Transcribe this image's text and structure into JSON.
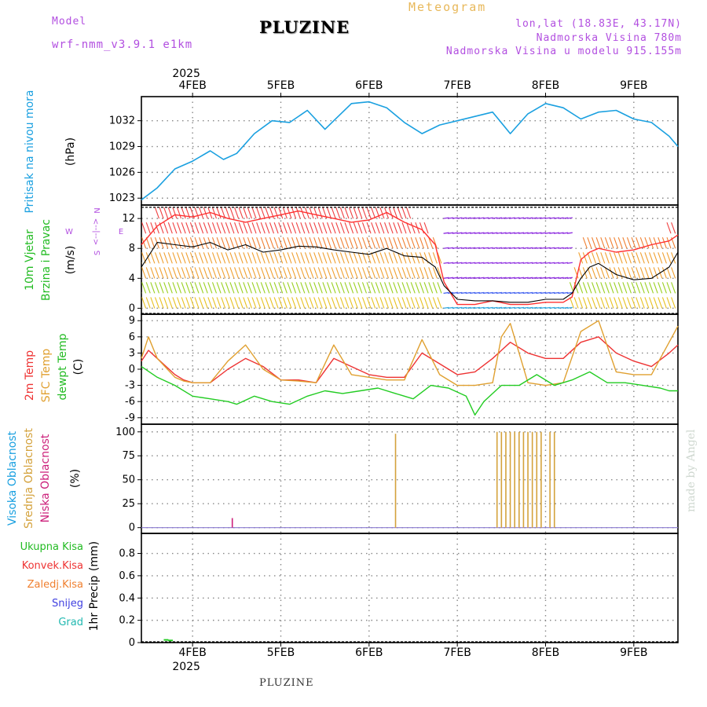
{
  "header": {
    "model_label": "Model",
    "model_name": "wrf-nmm_v3.9.1 e1km",
    "station": "PLUZINE",
    "product": "Meteogram",
    "coords": "lon,lat (18.83E, 43.17N)",
    "elevation": "Nadmorska Visina 780m",
    "model_elevation": "Nadmorska Visina u modelu 915.155m"
  },
  "time_axis": {
    "year": "2025",
    "day_labels": [
      "4FEB",
      "5FEB",
      "6FEB",
      "7FEB",
      "8FEB",
      "9FEB"
    ],
    "day_positions": [
      1,
      2,
      3,
      4,
      5,
      6
    ],
    "range": [
      0.42,
      6.5
    ]
  },
  "footer_label": "PLUZINE",
  "signature": "made by Angel",
  "colors": {
    "pressure": "#1aa0e0",
    "wind_speed": "#000000",
    "gust": "#ff3030",
    "temp2m": "#ee3333",
    "sfc_temp": "#e0a030",
    "dewpoint": "#22cc22",
    "mid_cloud": "#d4a23c",
    "low_cloud": "#cc1f7a",
    "high_cloud": "#2aa8d8",
    "grid": "#888888"
  },
  "chart_data": [
    {
      "type": "line",
      "panel": "pressure",
      "ylabel_main": "Pritisak na nivou mora",
      "unit": "(hPa)",
      "yticks": [
        1023,
        1026,
        1029,
        1032
      ],
      "ylim": [
        1022.2,
        1034.8
      ],
      "series": [
        {
          "x": [
            0.42,
            0.6,
            0.8,
            1.0,
            1.2,
            1.35,
            1.5,
            1.7,
            1.9,
            2.1,
            2.3,
            2.5,
            2.65,
            2.8,
            3.0,
            3.2,
            3.4,
            3.6,
            3.8,
            4.0,
            4.2,
            4.4,
            4.6,
            4.8,
            5.0,
            5.2,
            5.4,
            5.6,
            5.8,
            6.0,
            6.2,
            6.4,
            6.5
          ],
          "values": [
            1022.8,
            1024.2,
            1026.4,
            1027.3,
            1028.5,
            1027.5,
            1028.2,
            1030.5,
            1032.0,
            1031.8,
            1033.2,
            1031.0,
            1032.5,
            1034.0,
            1034.2,
            1033.5,
            1031.8,
            1030.5,
            1031.5,
            1032.0,
            1032.5,
            1033.0,
            1030.5,
            1032.8,
            1034.0,
            1033.5,
            1032.2,
            1033.0,
            1033.2,
            1032.2,
            1031.8,
            1030.2,
            1029.0
          ]
        }
      ]
    },
    {
      "type": "line",
      "panel": "wind",
      "ylabel_main": "10m Vjetar",
      "ylabel_sub": "Brzina i Pravac",
      "unit": "(m/s)",
      "compass": {
        "north": "N",
        "east": "E",
        "south": "S",
        "west": "W",
        "arrows": "<--|-->"
      },
      "yticks": [
        0,
        4,
        8,
        12
      ],
      "ylim": [
        -0.8,
        13.8
      ],
      "series": [
        {
          "name": "speed",
          "x": [
            0.42,
            0.6,
            0.8,
            1.0,
            1.2,
            1.4,
            1.6,
            1.8,
            2.0,
            2.2,
            2.4,
            2.6,
            2.8,
            3.0,
            3.2,
            3.4,
            3.6,
            3.75,
            3.85,
            4.0,
            4.2,
            4.4,
            4.6,
            4.8,
            5.0,
            5.2,
            5.3,
            5.4,
            5.5,
            5.6,
            5.8,
            6.0,
            6.2,
            6.4,
            6.5
          ],
          "values": [
            5.5,
            8.8,
            8.5,
            8.2,
            8.8,
            7.8,
            8.5,
            7.5,
            7.8,
            8.3,
            8.2,
            7.8,
            7.5,
            7.2,
            8.0,
            7.0,
            6.8,
            5.5,
            3.0,
            1.2,
            1.0,
            1.0,
            0.8,
            0.8,
            1.2,
            1.2,
            2.0,
            4.0,
            5.5,
            6.0,
            4.5,
            3.8,
            4.0,
            5.5,
            7.5
          ]
        },
        {
          "name": "gust",
          "x": [
            0.42,
            0.6,
            0.8,
            1.0,
            1.2,
            1.4,
            1.6,
            1.8,
            2.0,
            2.2,
            2.4,
            2.6,
            2.8,
            3.0,
            3.2,
            3.4,
            3.6,
            3.75,
            3.85,
            4.0,
            4.2,
            4.4,
            4.6,
            4.8,
            5.0,
            5.2,
            5.3,
            5.4,
            5.5,
            5.6,
            5.8,
            6.0,
            6.2,
            6.4,
            6.5
          ],
          "values": [
            8.5,
            11.0,
            12.5,
            12.2,
            12.8,
            12.0,
            11.5,
            12.0,
            12.5,
            13.0,
            12.5,
            12.0,
            11.5,
            11.8,
            12.8,
            11.5,
            10.5,
            8.5,
            3.5,
            0.5,
            0.5,
            1.0,
            0.5,
            0.5,
            0.8,
            0.8,
            1.5,
            6.5,
            7.5,
            8.0,
            7.5,
            7.8,
            8.5,
            9.0,
            9.8
          ]
        }
      ]
    },
    {
      "type": "line",
      "panel": "temperature",
      "ylabel_main": "2m Temp",
      "ylabel_sub": "SFC Temp",
      "ylabel_sub2": "dewpt Temp",
      "unit": "(C)",
      "yticks": [
        -9,
        -6,
        -3,
        0,
        3,
        6,
        9
      ],
      "ylim": [
        -10.2,
        10.2
      ],
      "series": [
        {
          "name": "2m Temp",
          "x": [
            0.42,
            0.5,
            0.6,
            0.8,
            0.9,
            1.0,
            1.2,
            1.4,
            1.6,
            1.8,
            2.0,
            2.2,
            2.4,
            2.6,
            2.8,
            3.0,
            3.2,
            3.4,
            3.6,
            3.8,
            4.0,
            4.2,
            4.4,
            4.5,
            4.6,
            4.8,
            5.0,
            5.2,
            5.4,
            5.6,
            5.8,
            6.0,
            6.2,
            6.4,
            6.5
          ],
          "values": [
            1.5,
            3.5,
            2.0,
            -1.0,
            -2.0,
            -2.5,
            -2.5,
            0.0,
            2.0,
            0.5,
            -2.0,
            -2.0,
            -2.5,
            2.0,
            0.5,
            -1.0,
            -1.5,
            -1.5,
            3.0,
            1.0,
            -1.0,
            -0.5,
            2.0,
            3.5,
            5.0,
            3.0,
            2.0,
            2.0,
            5.0,
            6.0,
            3.0,
            1.5,
            0.5,
            3.0,
            4.5
          ]
        },
        {
          "name": "SFC Temp",
          "x": [
            0.42,
            0.5,
            0.6,
            0.8,
            0.9,
            1.0,
            1.2,
            1.4,
            1.6,
            1.8,
            2.0,
            2.2,
            2.4,
            2.6,
            2.8,
            3.0,
            3.2,
            3.4,
            3.6,
            3.8,
            4.0,
            4.2,
            4.4,
            4.5,
            4.6,
            4.8,
            5.0,
            5.2,
            5.4,
            5.6,
            5.8,
            6.0,
            6.2,
            6.4,
            6.5
          ],
          "values": [
            2.0,
            6.0,
            2.0,
            -1.5,
            -2.2,
            -2.5,
            -2.5,
            1.5,
            4.5,
            0.0,
            -2.0,
            -2.2,
            -2.5,
            4.5,
            -1.0,
            -1.5,
            -2.0,
            -2.0,
            5.5,
            -1.0,
            -3.0,
            -3.0,
            -2.5,
            6.0,
            8.5,
            -2.5,
            -3.0,
            -2.5,
            7.0,
            9.0,
            -0.5,
            -1.0,
            -1.0,
            5.0,
            8.0
          ]
        },
        {
          "name": "dewpt Temp",
          "x": [
            0.42,
            0.6,
            0.8,
            1.0,
            1.2,
            1.4,
            1.5,
            1.7,
            1.9,
            2.1,
            2.3,
            2.5,
            2.7,
            2.9,
            3.1,
            3.3,
            3.5,
            3.7,
            3.9,
            4.1,
            4.2,
            4.3,
            4.5,
            4.7,
            4.9,
            5.1,
            5.3,
            5.5,
            5.7,
            5.9,
            6.1,
            6.3,
            6.4,
            6.5
          ],
          "values": [
            0.5,
            -1.5,
            -3.0,
            -5.0,
            -5.5,
            -6.0,
            -6.5,
            -5.0,
            -6.0,
            -6.5,
            -5.0,
            -4.0,
            -4.5,
            -4.0,
            -3.5,
            -4.5,
            -5.5,
            -3.0,
            -3.5,
            -5.0,
            -8.5,
            -6.0,
            -3.0,
            -3.0,
            -1.0,
            -3.0,
            -2.0,
            -0.5,
            -2.5,
            -2.5,
            -3.0,
            -3.5,
            -4.0,
            -4.0
          ]
        }
      ]
    },
    {
      "type": "bar",
      "panel": "cloud",
      "ylabel_main": "Visoka Oblacnost",
      "ylabel_sub": "Srednja Oblacnost",
      "ylabel_sub2": "Niska Oblacnost",
      "unit": "(%)",
      "yticks": [
        0,
        25,
        50,
        75,
        100
      ],
      "ylim": [
        -6,
        108
      ],
      "series": [
        {
          "name": "Srednja Oblacnost",
          "x": [
            3.3,
            4.45,
            4.5,
            4.55,
            4.6,
            4.65,
            4.7,
            4.75,
            4.8,
            4.85,
            4.9,
            4.95,
            5.05,
            5.1
          ],
          "values": [
            98,
            100,
            100,
            100,
            100,
            100,
            100,
            100,
            100,
            100,
            100,
            100,
            100,
            100
          ]
        },
        {
          "name": "Niska Oblacnost",
          "x": [
            1.45
          ],
          "values": [
            10
          ]
        }
      ]
    },
    {
      "type": "bar",
      "panel": "precip",
      "ylabel_main": "1hr Precip",
      "unit": "(mm)",
      "legend": [
        "Ukupna Kisa",
        "Konvek.Kisa",
        "Zaledj.Kisa",
        "Snijeg",
        "Grad"
      ],
      "yticks": [
        0,
        0.2,
        0.4,
        0.6,
        0.8
      ],
      "ylim": [
        0,
        0.98
      ],
      "series": [
        {
          "name": "Ukupna Kisa",
          "x": [
            0.7,
            0.75
          ],
          "values": [
            0.01,
            0.005
          ]
        }
      ]
    }
  ]
}
